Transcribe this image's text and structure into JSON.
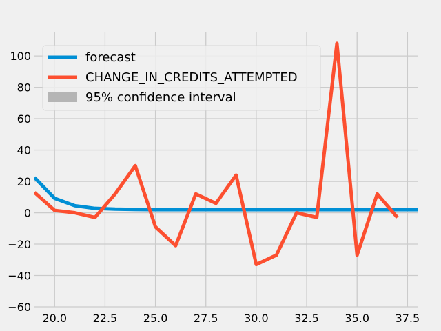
{
  "chart_data": {
    "type": "line",
    "title": "",
    "xlabel": "",
    "ylabel": "",
    "xlim": [
      19.0,
      38.0
    ],
    "ylim": [
      -60,
      115
    ],
    "xticks": [
      20.0,
      22.5,
      25.0,
      27.5,
      30.0,
      32.5,
      35.0,
      37.5
    ],
    "xtick_labels": [
      "20.0",
      "22.5",
      "25.0",
      "27.5",
      "30.0",
      "32.5",
      "35.0",
      "37.5"
    ],
    "yticks": [
      -60,
      -40,
      -20,
      0,
      20,
      40,
      60,
      80,
      100
    ],
    "ytick_labels": [
      "−60",
      "−40",
      "−20",
      "0",
      "20",
      "40",
      "60",
      "80",
      "100"
    ],
    "grid": true,
    "legend_position": "upper-left",
    "series": [
      {
        "name": "forecast",
        "color": "#008fd5",
        "x": [
          19,
          20,
          21,
          22,
          23,
          24,
          25,
          26,
          27,
          28,
          29,
          30,
          31,
          32,
          33,
          34,
          35,
          36,
          37,
          38
        ],
        "values": [
          22.5,
          9.2,
          4.5,
          2.8,
          2.3,
          2.1,
          2.0,
          2.0,
          2.0,
          2.0,
          2.0,
          2.0,
          2.0,
          2.0,
          2.0,
          2.0,
          2.0,
          2.0,
          2.0,
          2.0
        ]
      },
      {
        "name": "CHANGE_IN_CREDITS_ATTEMPTED",
        "color": "#fc4f30",
        "x": [
          19,
          20,
          21,
          22,
          23,
          24,
          25,
          26,
          27,
          28,
          29,
          30,
          31,
          32,
          33,
          34,
          35,
          36,
          37
        ],
        "values": [
          13,
          1.5,
          0,
          -3,
          12,
          30,
          -9,
          -21,
          12,
          6,
          24,
          -33,
          -27,
          0,
          -3,
          108,
          -27,
          12,
          -3
        ]
      }
    ],
    "legend": [
      {
        "label": "forecast",
        "kind": "line",
        "color": "#008fd5"
      },
      {
        "label": "CHANGE_IN_CREDITS_ATTEMPTED",
        "kind": "line",
        "color": "#fc4f30"
      },
      {
        "label": "95% confidence interval",
        "kind": "patch",
        "color": "#b5b5b5"
      }
    ]
  }
}
